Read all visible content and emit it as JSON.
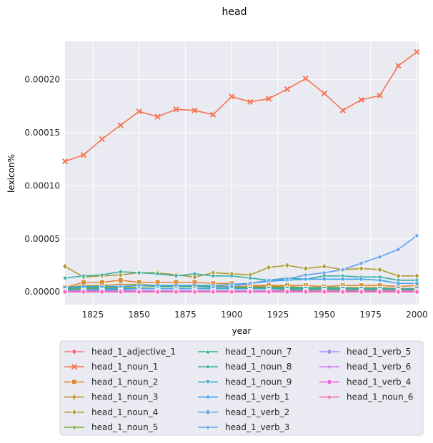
{
  "chart_data": {
    "type": "line",
    "title": "head",
    "xlabel": "year",
    "ylabel": "lexicon%",
    "xlim": [
      1810,
      2001
    ],
    "ylim": [
      -1.2e-05,
      0.000236
    ],
    "x_ticks": [
      1825,
      1850,
      1875,
      1900,
      1925,
      1950,
      1975,
      2000
    ],
    "y_ticks": [
      0.0,
      5e-05,
      0.0001,
      0.00015,
      0.0002
    ],
    "y_tick_labels": [
      "0.00000",
      "0.00005",
      "0.00010",
      "0.00015",
      "0.00020"
    ],
    "grid": true,
    "legend_position": "below",
    "legend_columns": 3,
    "x": [
      1810,
      1820,
      1830,
      1840,
      1850,
      1860,
      1870,
      1880,
      1890,
      1900,
      1910,
      1920,
      1930,
      1940,
      1950,
      1960,
      1970,
      1980,
      1990,
      2000
    ],
    "series": [
      {
        "name": "head_1_adjective_1",
        "color": "#f77189",
        "marker": "circle",
        "values": [
          5e-07,
          5e-07,
          5e-07,
          5e-07,
          5e-07,
          5e-07,
          5e-07,
          5e-07,
          5e-07,
          5e-07,
          5e-07,
          5e-07,
          5e-07,
          5e-07,
          5e-07,
          5e-07,
          5e-07,
          5e-07,
          5e-07,
          5e-07
        ]
      },
      {
        "name": "head_1_noun_1",
        "color": "#f7754f",
        "marker": "x",
        "values": [
          0.000123,
          0.000129,
          0.000144,
          0.000157,
          0.00017,
          0.000165,
          0.000172,
          0.000171,
          0.000167,
          0.000184,
          0.000179,
          0.000182,
          0.000191,
          0.000201,
          0.000187,
          0.000171,
          0.000181,
          0.000185,
          0.000213,
          0.000226
        ]
      },
      {
        "name": "head_1_noun_2",
        "color": "#dc8932",
        "marker": "square",
        "values": [
          4e-06,
          9e-06,
          9e-06,
          1.1e-05,
          9e-06,
          9e-06,
          9e-06,
          9e-06,
          8e-06,
          8e-06,
          6e-06,
          6e-06,
          6e-06,
          6e-06,
          5e-06,
          6e-06,
          6e-06,
          6e-06,
          5e-06,
          6e-06
        ]
      },
      {
        "name": "head_1_noun_3",
        "color": "#c39532",
        "marker": "plus",
        "values": [
          4e-06,
          6e-06,
          6e-06,
          7e-06,
          7e-06,
          6e-06,
          6e-06,
          6e-06,
          6e-06,
          5e-06,
          5e-06,
          5e-06,
          5e-06,
          4e-06,
          4e-06,
          4e-06,
          4e-06,
          4e-06,
          3e-06,
          3e-06
        ]
      },
      {
        "name": "head_1_noun_4",
        "color": "#ae9d31",
        "marker": "diamond",
        "values": [
          2.4e-05,
          1.4e-05,
          1.5e-05,
          1.6e-05,
          1.8e-05,
          1.8e-05,
          1.6e-05,
          1.4e-05,
          1.8e-05,
          1.7e-05,
          1.6e-05,
          2.3e-05,
          2.5e-05,
          2.2e-05,
          2.4e-05,
          2.1e-05,
          2.2e-05,
          2.1e-05,
          1.5e-05,
          1.5e-05
        ]
      },
      {
        "name": "head_1_noun_5",
        "color": "#77ab31",
        "marker": "star",
        "values": [
          2e-06,
          3e-06,
          4e-06,
          4e-06,
          4e-06,
          3e-06,
          3e-06,
          3e-06,
          3e-06,
          3e-06,
          3e-06,
          3e-06,
          2e-06,
          2e-06,
          2e-06,
          2e-06,
          2e-06,
          2e-06,
          2e-06,
          2e-06
        ]
      },
      {
        "name": "head_1_noun_7",
        "color": "#33b07a",
        "marker": "triangle-up",
        "values": [
          3e-06,
          4e-06,
          5e-06,
          5e-06,
          6e-06,
          5e-06,
          5e-06,
          5e-06,
          5e-06,
          4e-06,
          4e-06,
          4e-06,
          4e-06,
          4e-06,
          4e-06,
          4e-06,
          3e-06,
          3e-06,
          3e-06,
          3e-06
        ]
      },
      {
        "name": "head_1_noun_8",
        "color": "#36ada4",
        "marker": "star",
        "values": [
          1.3e-05,
          1.5e-05,
          1.6e-05,
          1.9e-05,
          1.8e-05,
          1.7e-05,
          1.5e-05,
          1.7e-05,
          1.5e-05,
          1.5e-05,
          1.3e-05,
          1.1e-05,
          1.3e-05,
          1.2e-05,
          1.5e-05,
          1.5e-05,
          1.4e-05,
          1.4e-05,
          1.1e-05,
          1.1e-05
        ]
      },
      {
        "name": "head_1_noun_9",
        "color": "#38aabf",
        "marker": "triangle-down",
        "values": [
          2e-06,
          2e-06,
          3e-06,
          3e-06,
          3e-06,
          3e-06,
          3e-06,
          3e-06,
          3e-06,
          3e-06,
          3e-06,
          3e-06,
          3e-06,
          3e-06,
          3e-06,
          3e-06,
          3e-06,
          3e-06,
          3e-06,
          3e-06
        ]
      },
      {
        "name": "head_1_verb_1",
        "color": "#3ba3ec",
        "marker": "star",
        "values": [
          4e-06,
          5e-06,
          5e-06,
          5e-06,
          6e-06,
          6e-06,
          6e-06,
          6e-06,
          6e-06,
          7e-06,
          8e-06,
          1e-05,
          1.1e-05,
          1.2e-05,
          1.2e-05,
          1.2e-05,
          1.2e-05,
          1.1e-05,
          8e-06,
          8e-06
        ]
      },
      {
        "name": "head_1_verb_2",
        "color": "#6fa6e8",
        "marker": "circle",
        "values": [
          1e-06,
          1e-06,
          1e-06,
          1e-06,
          1e-06,
          1e-06,
          1e-06,
          1e-06,
          1e-06,
          1e-06,
          1e-06,
          1e-06,
          1e-06,
          1e-06,
          1e-06,
          1e-06,
          1e-06,
          1e-06,
          1e-06,
          1e-06
        ]
      },
      {
        "name": "head_1_verb_3",
        "color": "#5fa0ef",
        "marker": "star",
        "values": [
          1e-06,
          2e-06,
          2e-06,
          2e-06,
          3e-06,
          3e-06,
          3e-06,
          3e-06,
          4e-06,
          5e-06,
          8e-06,
          1.1e-05,
          1.2e-05,
          1.6e-05,
          1.8e-05,
          2.1e-05,
          2.7e-05,
          3.3e-05,
          4e-05,
          5.3e-05
        ]
      },
      {
        "name": "head_1_verb_5",
        "color": "#a48cf4",
        "marker": "circle",
        "values": [
          1e-06,
          1e-06,
          1e-06,
          1e-06,
          1e-06,
          1e-06,
          1e-06,
          1e-06,
          1e-06,
          1e-06,
          1e-06,
          1e-06,
          1e-06,
          1e-06,
          1e-06,
          1e-06,
          1e-06,
          1e-06,
          1e-06,
          1e-06
        ]
      },
      {
        "name": "head_1_verb_6",
        "color": "#cc7af4",
        "marker": "star",
        "values": [
          5e-07,
          5e-07,
          5e-07,
          5e-07,
          5e-07,
          5e-07,
          5e-07,
          5e-07,
          5e-07,
          5e-07,
          5e-07,
          5e-07,
          5e-07,
          5e-07,
          5e-07,
          5e-07,
          5e-07,
          5e-07,
          5e-07,
          5e-07
        ]
      },
      {
        "name": "head_1_verb_4",
        "color": "#f161dd",
        "marker": "circle",
        "values": [
          0.0,
          0.0,
          0.0,
          0.0,
          0.0,
          0.0,
          0.0,
          0.0,
          0.0,
          0.0,
          0.0,
          0.0,
          0.0,
          0.0,
          0.0,
          0.0,
          0.0,
          0.0,
          0.0,
          0.0
        ]
      },
      {
        "name": "head_1_noun_6",
        "color": "#f565b2",
        "marker": "star",
        "values": [
          2e-07,
          2e-07,
          2e-07,
          2e-07,
          2e-07,
          2e-07,
          2e-07,
          2e-07,
          2e-07,
          2e-07,
          2e-07,
          2e-07,
          2e-07,
          2e-07,
          2e-07,
          2e-07,
          2e-07,
          2e-07,
          2e-07,
          2e-07
        ]
      }
    ]
  }
}
